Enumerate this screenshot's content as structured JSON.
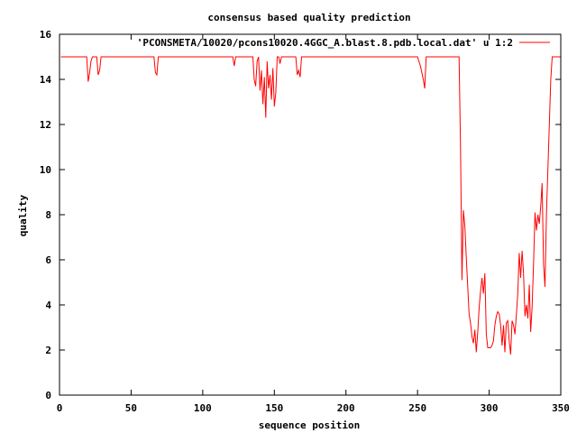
{
  "chart_data": {
    "type": "line",
    "title": "consensus based quality prediction",
    "xlabel": "sequence position",
    "ylabel": "quality",
    "xlim": [
      0,
      350
    ],
    "ylim": [
      0,
      16
    ],
    "xticks": [
      0,
      50,
      100,
      150,
      200,
      250,
      300,
      350
    ],
    "yticks": [
      0,
      2,
      4,
      6,
      8,
      10,
      12,
      14,
      16
    ],
    "grid": false,
    "legend_position": "top-right",
    "series": [
      {
        "name": "'PCONSMETA/10020/pcons10020.4GGC_A.blast.8.pdb.local.dat' u 1:2",
        "color": "#ff0000",
        "x": [
          1,
          19,
          20,
          21,
          22,
          23,
          24,
          25,
          26,
          27,
          28,
          29,
          30,
          31,
          66,
          67,
          68,
          69,
          70,
          121,
          122,
          123,
          135,
          136,
          137,
          138,
          139,
          140,
          141,
          142,
          143,
          144,
          145,
          146,
          147,
          148,
          149,
          150,
          151,
          152,
          153,
          154,
          155,
          156,
          157,
          165,
          166,
          167,
          168,
          169,
          170,
          250,
          252,
          254,
          255,
          256,
          257,
          258,
          279,
          280,
          281,
          282,
          283,
          284,
          285,
          286,
          287,
          288,
          289,
          290,
          291,
          292,
          293,
          294,
          295,
          296,
          297,
          298,
          299,
          300,
          301,
          302,
          303,
          304,
          305,
          306,
          307,
          308,
          309,
          310,
          311,
          312,
          313,
          314,
          315,
          316,
          317,
          318,
          319,
          320,
          321,
          322,
          323,
          324,
          325,
          326,
          327,
          328,
          329,
          330,
          331,
          332,
          333,
          334,
          335,
          336,
          337,
          338,
          339,
          340,
          341,
          342,
          343,
          344,
          345,
          346,
          347,
          348,
          350
        ],
        "y": [
          15,
          15,
          13.9,
          14.3,
          14.8,
          15,
          15,
          15,
          15,
          14.2,
          14.4,
          15,
          15,
          15,
          15,
          14.3,
          14.2,
          15,
          15,
          15,
          14.6,
          15,
          15,
          14.0,
          13.7,
          14.8,
          15,
          13.5,
          14.4,
          12.9,
          14.1,
          12.3,
          14.8,
          13.6,
          14.2,
          13.1,
          14.5,
          12.8,
          13.4,
          15,
          15,
          14.7,
          15,
          15,
          15,
          15,
          14.2,
          14.4,
          14.1,
          15,
          15,
          15,
          14.6,
          14.0,
          13.6,
          15,
          15,
          15,
          15,
          11.0,
          5.1,
          8.2,
          7.5,
          6.1,
          4.9,
          3.6,
          3.2,
          2.6,
          2.3,
          2.9,
          1.9,
          2.8,
          3.9,
          4.6,
          5.2,
          4.5,
          5.4,
          2.7,
          2.1,
          2.1,
          2.1,
          2.2,
          2.4,
          3.1,
          3.5,
          3.7,
          3.6,
          3.1,
          2.2,
          3.1,
          1.9,
          3.2,
          3.3,
          2.4,
          1.8,
          3.3,
          3.1,
          2.7,
          3.6,
          4.5,
          6.3,
          5.2,
          6.4,
          5.4,
          3.5,
          4.0,
          3.4,
          4.9,
          2.8,
          3.9,
          5.8,
          8.1,
          7.3,
          8.0,
          7.6,
          8.4,
          9.4,
          5.8,
          4.8,
          8.0,
          10.0,
          12.0,
          14.0,
          15,
          15,
          15,
          15,
          15,
          15
        ]
      }
    ]
  }
}
